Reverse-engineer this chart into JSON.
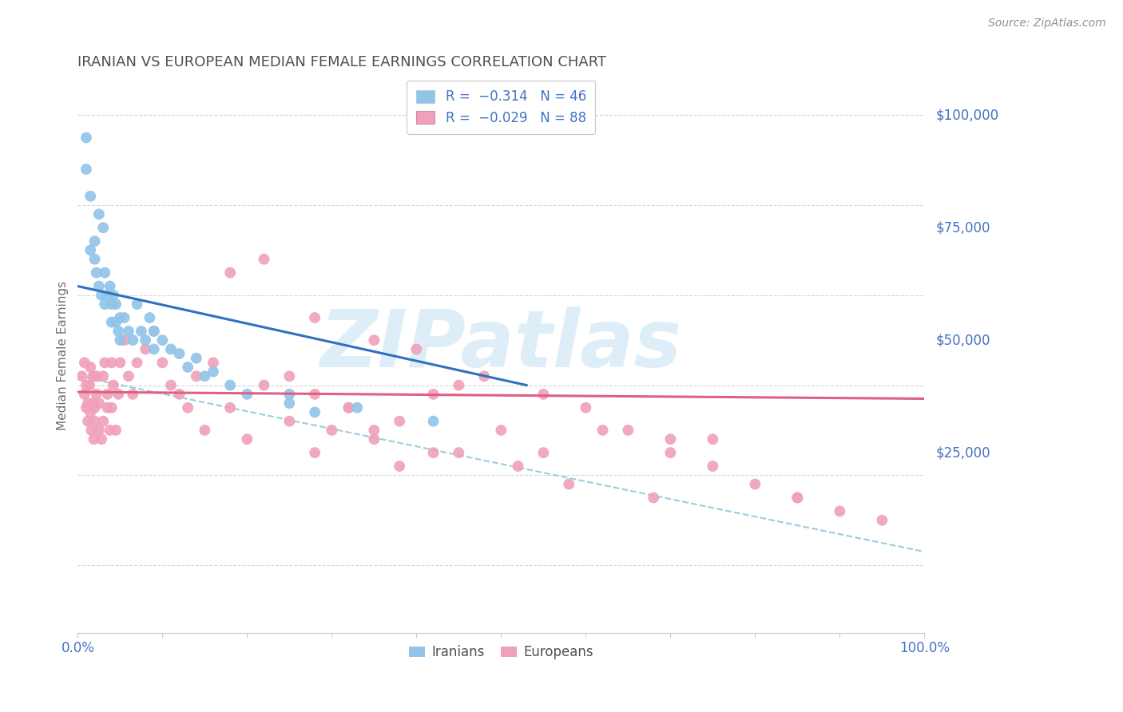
{
  "title": "IRANIAN VS EUROPEAN MEDIAN FEMALE EARNINGS CORRELATION CHART",
  "source_text": "Source: ZipAtlas.com",
  "ylabel": "Median Female Earnings",
  "xlim": [
    0.0,
    1.0
  ],
  "ylim": [
    -15000,
    108000
  ],
  "background_color": "#ffffff",
  "grid_color": "#cccccc",
  "title_color": "#505050",
  "axis_color": "#4472c4",
  "watermark_text": "ZIPatlas",
  "watermark_color": "#ddeef8",
  "iranians_color": "#90c4e8",
  "europeans_color": "#f0a0b8",
  "iranian_line_color": "#3070c0",
  "european_line_color": "#e06080",
  "dashed_line_color": "#90c8d8",
  "iranian_line_x0": 0.0,
  "iranian_line_y0": 62000,
  "iranian_line_x1": 0.53,
  "iranian_line_y1": 40000,
  "european_line_x0": 0.0,
  "european_line_y0": 38500,
  "european_line_x1": 1.0,
  "european_line_y1": 37000,
  "dashed_line_x0": 0.0,
  "dashed_line_y0": 42000,
  "dashed_line_x1": 1.0,
  "dashed_line_y1": 3000,
  "iranians_x": [
    0.01,
    0.01,
    0.015,
    0.015,
    0.02,
    0.02,
    0.022,
    0.025,
    0.025,
    0.028,
    0.03,
    0.032,
    0.032,
    0.035,
    0.038,
    0.04,
    0.04,
    0.042,
    0.045,
    0.045,
    0.048,
    0.05,
    0.05,
    0.055,
    0.06,
    0.065,
    0.07,
    0.075,
    0.08,
    0.085,
    0.09,
    0.09,
    0.1,
    0.11,
    0.12,
    0.13,
    0.14,
    0.15,
    0.16,
    0.18,
    0.2,
    0.25,
    0.28,
    0.33,
    0.42,
    0.25
  ],
  "iranians_y": [
    95000,
    88000,
    82000,
    70000,
    72000,
    68000,
    65000,
    78000,
    62000,
    60000,
    75000,
    65000,
    58000,
    60000,
    62000,
    58000,
    54000,
    60000,
    58000,
    54000,
    52000,
    55000,
    50000,
    55000,
    52000,
    50000,
    58000,
    52000,
    50000,
    55000,
    52000,
    48000,
    50000,
    48000,
    47000,
    44000,
    46000,
    42000,
    43000,
    40000,
    38000,
    36000,
    34000,
    35000,
    32000,
    38000
  ],
  "europeans_x": [
    0.005,
    0.008,
    0.008,
    0.01,
    0.01,
    0.012,
    0.012,
    0.014,
    0.015,
    0.015,
    0.016,
    0.018,
    0.018,
    0.019,
    0.02,
    0.02,
    0.022,
    0.022,
    0.025,
    0.025,
    0.028,
    0.03,
    0.03,
    0.032,
    0.035,
    0.035,
    0.038,
    0.04,
    0.04,
    0.042,
    0.045,
    0.048,
    0.05,
    0.055,
    0.06,
    0.065,
    0.07,
    0.08,
    0.09,
    0.1,
    0.11,
    0.12,
    0.13,
    0.14,
    0.15,
    0.16,
    0.18,
    0.2,
    0.22,
    0.25,
    0.28,
    0.3,
    0.32,
    0.35,
    0.38,
    0.42,
    0.45,
    0.5,
    0.55,
    0.6,
    0.65,
    0.7,
    0.75,
    0.8,
    0.85,
    0.9,
    0.95,
    0.18,
    0.22,
    0.28,
    0.35,
    0.4,
    0.48,
    0.55,
    0.62,
    0.7,
    0.75,
    0.85,
    0.32,
    0.25,
    0.38,
    0.42,
    0.52,
    0.28,
    0.35,
    0.45,
    0.58,
    0.68
  ],
  "europeans_y": [
    42000,
    38000,
    45000,
    35000,
    40000,
    36000,
    32000,
    40000,
    34000,
    44000,
    30000,
    36000,
    42000,
    28000,
    35000,
    32000,
    38000,
    42000,
    30000,
    36000,
    28000,
    42000,
    32000,
    45000,
    35000,
    38000,
    30000,
    45000,
    35000,
    40000,
    30000,
    38000,
    45000,
    50000,
    42000,
    38000,
    45000,
    48000,
    52000,
    45000,
    40000,
    38000,
    35000,
    42000,
    30000,
    45000,
    35000,
    28000,
    40000,
    32000,
    25000,
    30000,
    35000,
    28000,
    22000,
    38000,
    40000,
    30000,
    25000,
    35000,
    30000,
    28000,
    22000,
    18000,
    15000,
    12000,
    10000,
    65000,
    68000,
    55000,
    50000,
    48000,
    42000,
    38000,
    30000,
    25000,
    28000,
    15000,
    35000,
    42000,
    32000,
    25000,
    22000,
    38000,
    30000,
    25000,
    18000,
    15000
  ]
}
